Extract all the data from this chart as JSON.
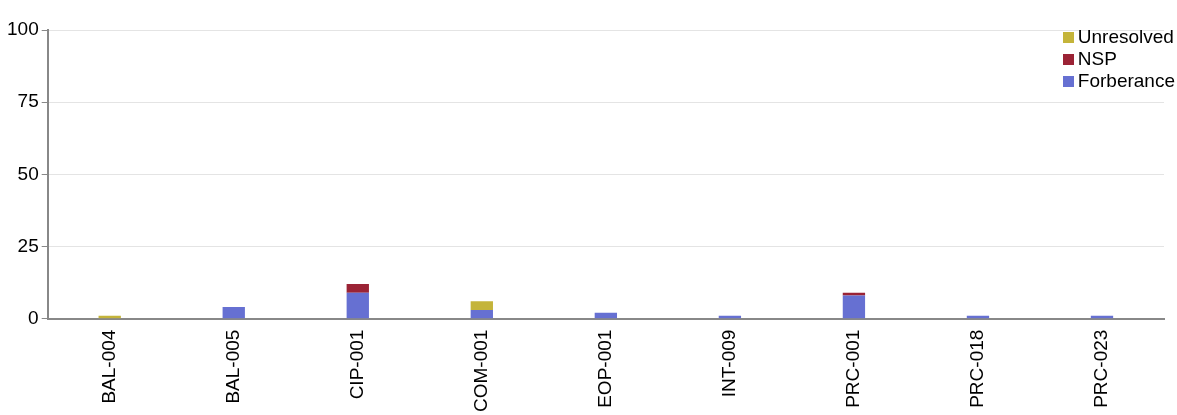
{
  "chart_data": {
    "type": "bar",
    "stacked": true,
    "categories": [
      "BAL-004",
      "BAL-005",
      "CIP-001",
      "COM-001",
      "EOP-001",
      "INT-009",
      "PRC-001",
      "PRC-018",
      "PRC-023"
    ],
    "series": [
      {
        "name": "Forberance",
        "color": "#6670d2",
        "values": [
          0,
          4,
          9,
          3,
          2,
          1,
          8,
          1,
          1
        ]
      },
      {
        "name": "NSP",
        "color": "#9b2335",
        "values": [
          0,
          0,
          3,
          0,
          0,
          0,
          1,
          0,
          0
        ]
      },
      {
        "name": "Unresolved",
        "color": "#c4b43a",
        "values": [
          1,
          0,
          0,
          3,
          0,
          0,
          0,
          0,
          0
        ]
      }
    ],
    "ylim": [
      0,
      100
    ],
    "yticks": [
      0,
      25,
      50,
      75,
      100
    ],
    "grid": "y",
    "legend": "top right"
  }
}
